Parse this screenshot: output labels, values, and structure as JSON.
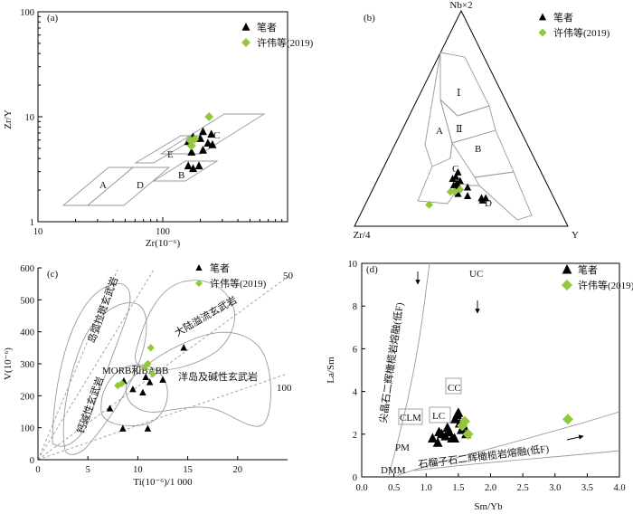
{
  "chart_data": [
    {
      "panel": "(a)",
      "type": "scatter",
      "xscale": "log",
      "yscale": "log",
      "xlim": [
        10,
        1000
      ],
      "ylim": [
        1,
        100
      ],
      "xlabel": "Zr(10⁻⁶)",
      "ylabel": "Zr/Y",
      "xticks": [
        "10",
        "100"
      ],
      "yticks": [
        "1",
        "10",
        "100"
      ],
      "field_labels": [
        "A",
        "B",
        "C",
        "D",
        "E"
      ],
      "legend_placement": "top-right",
      "series": [
        {
          "name": "笔者",
          "marker": "triangle",
          "color": "#000000",
          "points": [
            [
              160,
              3.4
            ],
            [
              175,
              3.2
            ],
            [
              195,
              3.4
            ],
            [
              170,
              4.6
            ],
            [
              210,
              4.8
            ],
            [
              210,
              7.2
            ],
            [
              230,
              5.6
            ],
            [
              250,
              5.4
            ],
            [
              160,
              5.8
            ],
            [
              175,
              6.4
            ],
            [
              200,
              6.2
            ],
            [
              245,
              6.8
            ]
          ]
        },
        {
          "name": "许伟等(2019)",
          "marker": "diamond",
          "color": "#92c83e",
          "points": [
            [
              170,
              5.3
            ],
            [
              180,
              6.1
            ],
            [
              165,
              6.0
            ],
            [
              235,
              10.0
            ]
          ]
        }
      ]
    },
    {
      "panel": "(b)",
      "type": "scatter",
      "coordinates": "ternary",
      "apex_labels": [
        "Nb×2",
        "Zr/4",
        "Y"
      ],
      "field_labels": [
        "Ⅰ",
        "Ⅱ",
        "A",
        "B",
        "C",
        "D"
      ],
      "legend_placement": "top-right",
      "series": [
        {
          "name": "笔者",
          "marker": "triangle",
          "color": "#000000",
          "points": [
            [
              0.22,
              0.43,
              0.35
            ],
            [
              0.23,
              0.41,
              0.36
            ],
            [
              0.21,
              0.4,
              0.39
            ],
            [
              0.19,
              0.44,
              0.37
            ],
            [
              0.18,
              0.43,
              0.39
            ],
            [
              0.18,
              0.38,
              0.44
            ],
            [
              0.15,
              0.44,
              0.41
            ],
            [
              0.14,
              0.4,
              0.46
            ],
            [
              0.13,
              0.34,
              0.53
            ],
            [
              0.13,
              0.32,
              0.55
            ],
            [
              0.12,
              0.34,
              0.54
            ],
            [
              0.25,
              0.39,
              0.36
            ],
            [
              0.2,
              0.42,
              0.38
            ]
          ]
        },
        {
          "name": "许伟等(2019)",
          "marker": "diamond",
          "color": "#92c83e",
          "points": [
            [
              0.16,
              0.47,
              0.37
            ],
            [
              0.16,
              0.45,
              0.39
            ],
            [
              0.17,
              0.42,
              0.41
            ],
            [
              0.1,
              0.6,
              0.3
            ]
          ]
        }
      ]
    },
    {
      "panel": "(c)",
      "type": "scatter",
      "xlim": [
        0,
        25
      ],
      "ylim": [
        0,
        600
      ],
      "xlabel": "Ti(10⁻⁶)/1 000",
      "ylabel": "V(10⁻⁶)",
      "xticks": [
        "0",
        "5",
        "10",
        "15",
        "20"
      ],
      "yticks": [
        "0",
        "100",
        "200",
        "300",
        "400",
        "500",
        "600"
      ],
      "field_labels": [
        "岛弧拉斑玄武岩",
        "钙碱性玄武岩",
        "大陆溢流玄武岩",
        "洋岛及碱性玄武岩",
        "MORB和BABB"
      ],
      "ratio_labels": [
        "50",
        "100"
      ],
      "legend_placement": "top-center",
      "series": [
        {
          "name": "笔者",
          "marker": "triangle",
          "color": "#000000",
          "points": [
            [
              7.2,
              160
            ],
            [
              8.6,
              246
            ],
            [
              9.5,
              220
            ],
            [
              10.8,
              258
            ],
            [
              11.2,
              242
            ],
            [
              12.5,
              250
            ],
            [
              14.6,
              350
            ],
            [
              8.5,
              97
            ],
            [
              11.0,
              97
            ],
            [
              10.5,
              210
            ]
          ]
        },
        {
          "name": "许伟等(2019)",
          "marker": "diamond",
          "color": "#92c83e",
          "points": [
            [
              8.0,
              232
            ],
            [
              8.4,
              238
            ],
            [
              10.7,
              290
            ],
            [
              11.0,
              300
            ],
            [
              11.3,
              350
            ],
            [
              11.5,
              268
            ]
          ]
        }
      ]
    },
    {
      "panel": "(d)",
      "type": "scatter",
      "xlim": [
        0,
        4
      ],
      "ylim": [
        0,
        10
      ],
      "xlabel": "Sm/Yb",
      "ylabel": "La/Sm",
      "xticks": [
        "0.0",
        "0.5",
        "1.0",
        "1.5",
        "2.0",
        "2.5",
        "3.0",
        "3.5",
        "4.0"
      ],
      "yticks": [
        "0",
        "2",
        "4",
        "6",
        "8",
        "10"
      ],
      "field_labels": [
        "尖晶石二辉橄榄岩熔融(低F)",
        "石榴子石二辉橄榄岩熔融(低F)",
        "UC",
        "CC",
        "LC",
        "CLM",
        "PM",
        "DMM"
      ],
      "legend_placement": "top-right",
      "series": [
        {
          "name": "笔者",
          "marker": "triangle",
          "color": "#000000",
          "points": [
            [
              1.1,
              1.8
            ],
            [
              1.18,
              1.6
            ],
            [
              1.24,
              2.0
            ],
            [
              1.3,
              1.9
            ],
            [
              1.36,
              2.1
            ],
            [
              1.4,
              1.8
            ],
            [
              1.45,
              2.7
            ],
            [
              1.48,
              2.9
            ],
            [
              1.5,
              3.0
            ],
            [
              1.52,
              2.5
            ],
            [
              1.55,
              2.2
            ],
            [
              1.58,
              2.4
            ],
            [
              1.62,
              2.0
            ],
            [
              1.44,
              1.8
            ],
            [
              1.2,
              2.1
            ],
            [
              1.33,
              2.3
            ]
          ]
        },
        {
          "name": "许伟等(2019)",
          "marker": "diamond",
          "color": "#92c83e",
          "points": [
            [
              1.56,
              2.4
            ],
            [
              1.6,
              2.6
            ],
            [
              1.65,
              2.0
            ],
            [
              3.2,
              2.7
            ]
          ]
        }
      ]
    }
  ]
}
